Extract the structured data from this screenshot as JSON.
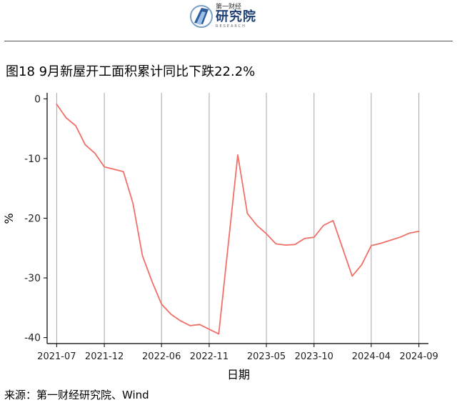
{
  "header": {
    "logo_small": "第一财经",
    "logo_main": "研究院",
    "logo_sub": "RESEARCH"
  },
  "figure_title": "图18 9月新屋开工面积累计同比下跌22.2%",
  "source": "来源：第一财经研究院、Wind",
  "colors": {
    "line": "#f07068",
    "grid": "#a6a6a6",
    "axis": "#000000"
  },
  "chart_data": {
    "type": "line",
    "title": "图18 9月新屋开工面积累计同比下跌22.2%",
    "xlabel": "日期",
    "ylabel": "%",
    "xlim": [
      "2021-06",
      "2024-10"
    ],
    "ylim": [
      -41,
      1
    ],
    "yticks": [
      0,
      -10,
      -20,
      -30,
      -40
    ],
    "xticks": [
      "2021-07",
      "2021-12",
      "2022-06",
      "2022-11",
      "2023-05",
      "2023-10",
      "2024-04",
      "2024-09"
    ],
    "grid": "vertical",
    "series": [
      {
        "x": [
          "2021-07",
          "2021-08",
          "2021-09",
          "2021-10",
          "2021-11",
          "2021-12",
          "2022-02",
          "2022-03",
          "2022-04",
          "2022-05",
          "2022-06",
          "2022-07",
          "2022-08",
          "2022-09",
          "2022-10",
          "2022-12",
          "2023-02",
          "2023-03",
          "2023-04",
          "2023-05",
          "2023-06",
          "2023-07",
          "2023-08",
          "2023-09",
          "2023-10",
          "2023-11",
          "2023-12",
          "2024-02",
          "2024-03",
          "2024-04",
          "2024-05",
          "2024-06",
          "2024-07",
          "2024-08",
          "2024-09"
        ],
        "values": [
          -0.9,
          -3.2,
          -4.5,
          -7.7,
          -9.1,
          -11.4,
          -12.2,
          -17.5,
          -26.3,
          -30.6,
          -34.4,
          -36.1,
          -37.2,
          -38.0,
          -37.8,
          -39.4,
          -9.4,
          -19.2,
          -21.2,
          -22.6,
          -24.3,
          -24.5,
          -24.4,
          -23.4,
          -23.2,
          -21.2,
          -20.4,
          -29.7,
          -27.8,
          -24.6,
          -24.2,
          -23.7,
          -23.2,
          -22.5,
          -22.2
        ]
      }
    ]
  }
}
